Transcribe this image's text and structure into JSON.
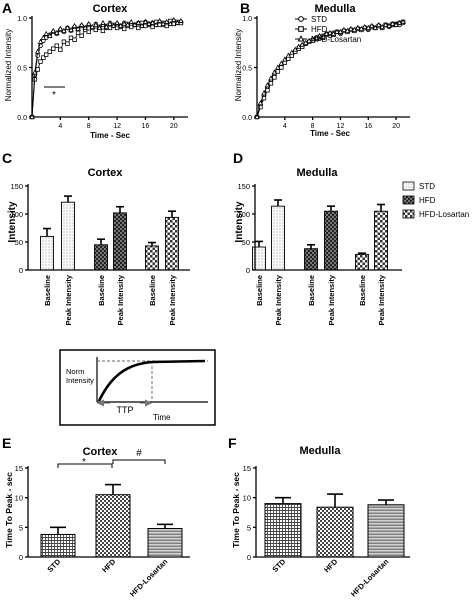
{
  "panels": {
    "A": {
      "letter": "A",
      "title": "Cortex",
      "ylabel": "Normalized Intensity",
      "xlabel": "Time - Sec",
      "annotation": "*"
    },
    "B": {
      "letter": "B",
      "title": "Medulla",
      "ylabel": "Normalized Intensity",
      "xlabel": "Time - Sec"
    },
    "C": {
      "letter": "C",
      "title": "Cortex",
      "ylabel": "Intensity"
    },
    "D": {
      "letter": "D",
      "title": "Medulla",
      "ylabel": "Intensity"
    },
    "E": {
      "letter": "E",
      "title": "Cortex",
      "ylabel": "Time To Peak - sec",
      "sig1": "*",
      "sig2": "#"
    },
    "F": {
      "letter": "F",
      "title": "Medulla",
      "ylabel": "Time To Peak - sec"
    }
  },
  "legend_top": [
    "STD",
    "HFD",
    "HFD-Losartan"
  ],
  "legend_bar": [
    "STD",
    "HFD",
    "HFD-Losartan"
  ],
  "diagram": {
    "ylabel": "Norm Intensity",
    "ttp_label": "TTP",
    "time_label": "Time"
  },
  "colors": {
    "black": "#000000",
    "hfd_fill": "#222222",
    "std_fill": "#f4f4f4"
  },
  "chart_data": [
    {
      "id": "A",
      "type": "line",
      "title": "Cortex",
      "xlabel": "Time - Sec",
      "ylabel": "Normalized Intensity",
      "xlim": [
        0,
        22
      ],
      "ylim": [
        0,
        1.0
      ],
      "xticks": [
        4,
        8,
        12,
        16,
        20
      ],
      "yticks": [
        0.0,
        0.5,
        1.0
      ],
      "series": [
        {
          "name": "STD",
          "marker": "circle",
          "x": [
            0,
            0.4,
            0.8,
            1.2,
            1.6,
            2,
            2.5,
            3,
            3.5,
            4,
            4.5,
            5,
            5.5,
            6,
            6.5,
            7,
            7.5,
            8,
            8.5,
            9,
            9.5,
            10,
            10.5,
            11,
            11.5,
            12,
            12.5,
            13,
            13.5,
            14,
            14.5,
            15,
            15.5,
            16,
            16.5,
            17,
            17.5,
            18,
            18.5,
            19,
            19.5,
            20,
            20.5,
            21
          ],
          "y": [
            0,
            0.42,
            0.62,
            0.72,
            0.77,
            0.8,
            0.83,
            0.86,
            0.84,
            0.88,
            0.86,
            0.9,
            0.87,
            0.91,
            0.89,
            0.92,
            0.9,
            0.93,
            0.9,
            0.94,
            0.91,
            0.93,
            0.9,
            0.95,
            0.92,
            0.94,
            0.91,
            0.95,
            0.92,
            0.94,
            0.93,
            0.95,
            0.92,
            0.96,
            0.93,
            0.95,
            0.93,
            0.96,
            0.93,
            0.95,
            0.94,
            0.97,
            0.95,
            0.96
          ]
        },
        {
          "name": "HFD",
          "marker": "square",
          "x": [
            0,
            0.4,
            0.8,
            1.2,
            1.6,
            2,
            2.5,
            3,
            3.5,
            4,
            4.5,
            5,
            5.5,
            6,
            6.5,
            7,
            7.5,
            8,
            8.5,
            9,
            9.5,
            10,
            10.5,
            11,
            11.5,
            12,
            12.5,
            13,
            13.5,
            14,
            14.5,
            15,
            15.5,
            16,
            16.5,
            17,
            17.5,
            18,
            18.5,
            19,
            19.5,
            20,
            20.5,
            21
          ],
          "y": [
            0,
            0.38,
            0.48,
            0.56,
            0.6,
            0.63,
            0.66,
            0.69,
            0.72,
            0.68,
            0.76,
            0.74,
            0.8,
            0.78,
            0.85,
            0.82,
            0.88,
            0.86,
            0.9,
            0.88,
            0.91,
            0.87,
            0.92,
            0.9,
            0.93,
            0.9,
            0.92,
            0.89,
            0.94,
            0.91,
            0.93,
            0.9,
            0.95,
            0.92,
            0.94,
            0.91,
            0.96,
            0.93,
            0.95,
            0.92,
            0.97,
            0.94,
            0.96,
            0.95
          ]
        },
        {
          "name": "HFD-Losartan",
          "marker": "triangle",
          "x": [
            0,
            0.4,
            0.8,
            1.2,
            1.6,
            2,
            2.5,
            3,
            3.5,
            4,
            4.5,
            5,
            5.5,
            6,
            6.5,
            7,
            7.5,
            8,
            8.5,
            9,
            9.5,
            10,
            10.5,
            11,
            11.5,
            12,
            12.5,
            13,
            13.5,
            14,
            14.5,
            15,
            15.5,
            16,
            16.5,
            17,
            17.5,
            18,
            18.5,
            19,
            19.5,
            20,
            20.5,
            21
          ],
          "y": [
            0,
            0.45,
            0.66,
            0.76,
            0.8,
            0.84,
            0.82,
            0.87,
            0.85,
            0.89,
            0.87,
            0.9,
            0.88,
            0.92,
            0.89,
            0.93,
            0.9,
            0.94,
            0.91,
            0.93,
            0.9,
            0.95,
            0.91,
            0.94,
            0.92,
            0.95,
            0.92,
            0.94,
            0.93,
            0.96,
            0.93,
            0.95,
            0.92,
            0.96,
            0.94,
            0.95,
            0.93,
            0.97,
            0.94,
            0.96,
            0.94,
            0.98,
            0.95,
            0.97
          ]
        }
      ]
    },
    {
      "id": "B",
      "type": "line",
      "title": "Medulla",
      "xlabel": "Time - Sec",
      "ylabel": "Normalized Intensity",
      "xlim": [
        0,
        22
      ],
      "ylim": [
        0,
        1.0
      ],
      "xticks": [
        4,
        8,
        12,
        16,
        20
      ],
      "yticks": [
        0.0,
        0.5,
        1.0
      ],
      "series": [
        {
          "name": "STD",
          "marker": "circle",
          "x": [
            0,
            0.5,
            1,
            1.5,
            2,
            2.5,
            3,
            3.5,
            4,
            4.5,
            5,
            5.5,
            6,
            6.5,
            7,
            7.5,
            8,
            8.5,
            9,
            9.5,
            10,
            10.5,
            11,
            11.5,
            12,
            12.5,
            13,
            13.5,
            14,
            14.5,
            15,
            15.5,
            16,
            16.5,
            17,
            17.5,
            18,
            18.5,
            19,
            19.5,
            20,
            20.5,
            21
          ],
          "y": [
            0,
            0.12,
            0.22,
            0.3,
            0.37,
            0.43,
            0.48,
            0.52,
            0.56,
            0.6,
            0.63,
            0.66,
            0.7,
            0.72,
            0.74,
            0.76,
            0.78,
            0.8,
            0.79,
            0.82,
            0.84,
            0.82,
            0.85,
            0.86,
            0.84,
            0.87,
            0.86,
            0.88,
            0.87,
            0.89,
            0.88,
            0.9,
            0.88,
            0.91,
            0.9,
            0.92,
            0.9,
            0.93,
            0.91,
            0.93,
            0.94,
            0.93,
            0.95
          ]
        },
        {
          "name": "HFD",
          "marker": "square",
          "x": [
            0,
            0.5,
            1,
            1.5,
            2,
            2.5,
            3,
            3.5,
            4,
            4.5,
            5,
            5.5,
            6,
            6.5,
            7,
            7.5,
            8,
            8.5,
            9,
            9.5,
            10,
            10.5,
            11,
            11.5,
            12,
            12.5,
            13,
            13.5,
            14,
            14.5,
            15,
            15.5,
            16,
            16.5,
            17,
            17.5,
            18,
            18.5,
            19,
            19.5,
            20,
            20.5,
            21
          ],
          "y": [
            0,
            0.1,
            0.19,
            0.27,
            0.34,
            0.4,
            0.46,
            0.5,
            0.55,
            0.59,
            0.62,
            0.66,
            0.69,
            0.71,
            0.74,
            0.76,
            0.77,
            0.79,
            0.81,
            0.8,
            0.83,
            0.84,
            0.83,
            0.86,
            0.85,
            0.87,
            0.86,
            0.88,
            0.87,
            0.89,
            0.88,
            0.9,
            0.89,
            0.91,
            0.9,
            0.92,
            0.9,
            0.93,
            0.92,
            0.94,
            0.93,
            0.95,
            0.96
          ]
        },
        {
          "name": "HFD-Losartan",
          "marker": "triangle",
          "x": [
            0,
            0.5,
            1,
            1.5,
            2,
            2.5,
            3,
            3.5,
            4,
            4.5,
            5,
            5.5,
            6,
            6.5,
            7,
            7.5,
            8,
            8.5,
            9,
            9.5,
            10,
            10.5,
            11,
            11.5,
            12,
            12.5,
            13,
            13.5,
            14,
            14.5,
            15,
            15.5,
            16,
            16.5,
            17,
            17.5,
            18,
            18.5,
            19,
            19.5,
            20,
            20.5,
            21
          ],
          "y": [
            0,
            0.14,
            0.24,
            0.32,
            0.39,
            0.45,
            0.5,
            0.54,
            0.58,
            0.62,
            0.65,
            0.68,
            0.71,
            0.73,
            0.75,
            0.77,
            0.79,
            0.8,
            0.82,
            0.81,
            0.84,
            0.85,
            0.84,
            0.86,
            0.86,
            0.88,
            0.87,
            0.89,
            0.88,
            0.9,
            0.89,
            0.91,
            0.9,
            0.92,
            0.9,
            0.93,
            0.91,
            0.93,
            0.92,
            0.94,
            0.93,
            0.95,
            0.96
          ]
        }
      ]
    },
    {
      "id": "C",
      "type": "bar",
      "title": "Cortex",
      "ylabel": "Intensity",
      "ylim": [
        0,
        150
      ],
      "yticks": [
        0,
        50,
        100,
        150
      ],
      "categories": [
        "Baseline",
        "Peak Intensity",
        "Baseline",
        "Peak Intensity",
        "Baseline",
        "Peak Intensity"
      ],
      "groups": [
        "STD",
        "STD",
        "HFD",
        "HFD",
        "HFD-Losartan",
        "HFD-Losartan"
      ],
      "values": [
        60,
        121,
        45,
        102,
        43,
        94
      ],
      "errors": [
        14,
        11,
        10,
        11,
        6,
        11
      ]
    },
    {
      "id": "D",
      "type": "bar",
      "title": "Medulla",
      "ylabel": "Intensity",
      "ylim": [
        0,
        150
      ],
      "yticks": [
        0,
        50,
        100,
        150
      ],
      "categories": [
        "Baseline",
        "Peak Intensity",
        "Baseline",
        "Peak Intensity",
        "Baseline",
        "Peak Intensity"
      ],
      "groups": [
        "STD",
        "STD",
        "HFD",
        "HFD",
        "HFD-Losartan",
        "HFD-Losartan"
      ],
      "values": [
        41,
        114,
        38,
        105,
        28,
        105
      ],
      "errors": [
        10,
        11,
        7,
        9,
        2,
        12
      ]
    },
    {
      "id": "E",
      "type": "bar",
      "title": "Cortex",
      "ylabel": "Time To Peak - sec",
      "ylim": [
        0,
        15
      ],
      "yticks": [
        0,
        5,
        10,
        15
      ],
      "categories": [
        "STD",
        "HFD",
        "HFD-Losartan"
      ],
      "values": [
        3.8,
        10.5,
        4.8
      ],
      "errors": [
        1.2,
        1.7,
        0.7
      ]
    },
    {
      "id": "F",
      "type": "bar",
      "title": "Medulla",
      "ylabel": "Time To Peak - sec",
      "ylim": [
        0,
        15
      ],
      "yticks": [
        0,
        5,
        10,
        15
      ],
      "categories": [
        "STD",
        "HFD",
        "HFD-Losartan"
      ],
      "values": [
        9.0,
        8.4,
        8.8
      ],
      "errors": [
        1.0,
        2.2,
        0.8
      ]
    }
  ]
}
